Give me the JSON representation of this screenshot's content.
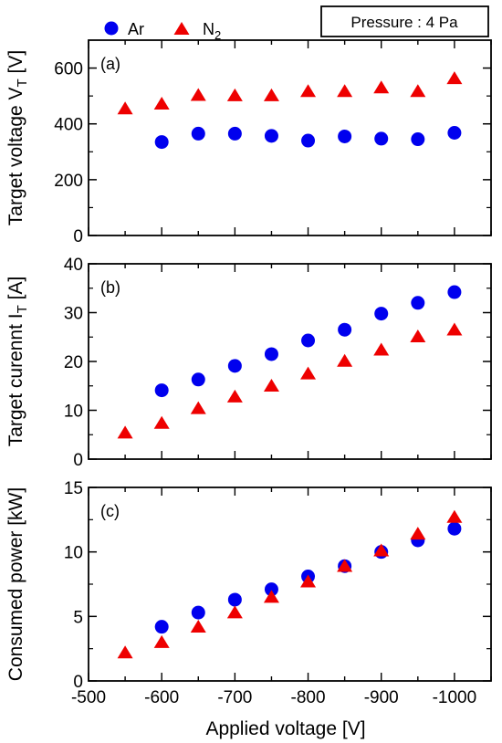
{
  "legend": {
    "ar_label": "Ar",
    "n2_label": "N",
    "n2_sub": "2",
    "ar_color": "#0000ee",
    "n2_color": "#ee0000"
  },
  "pressure_label": "Pressure : 4 Pa",
  "xlabel": "Applied voltage [V]",
  "chart_data": [
    {
      "type": "scatter",
      "panel_label": "(a)",
      "ylabel_main": "Target voltage V",
      "ylabel_sub": "T",
      "ylabel_unit": " [V]",
      "xlim": [
        -500,
        -1050
      ],
      "ylim": [
        0,
        700
      ],
      "xticks": [
        -500,
        -600,
        -700,
        -800,
        -900,
        -1000
      ],
      "yticks": [
        0,
        200,
        400,
        600
      ],
      "series": [
        {
          "name": "Ar",
          "marker": "circle",
          "color": "#0000ee",
          "x": [
            -600,
            -650,
            -700,
            -750,
            -800,
            -850,
            -900,
            -950,
            -1000
          ],
          "y": [
            335,
            365,
            365,
            357,
            340,
            355,
            347,
            345,
            368
          ]
        },
        {
          "name": "N2",
          "marker": "triangle",
          "color": "#ee0000",
          "x": [
            -550,
            -600,
            -650,
            -700,
            -750,
            -800,
            -850,
            -900,
            -950,
            -1000
          ],
          "y": [
            455,
            472,
            503,
            502,
            502,
            517,
            517,
            530,
            517,
            563
          ]
        }
      ]
    },
    {
      "type": "scatter",
      "panel_label": "(b)",
      "ylabel_main": "Target curennt I",
      "ylabel_sub": "T",
      "ylabel_unit": " [A]",
      "xlim": [
        -500,
        -1050
      ],
      "ylim": [
        0,
        40
      ],
      "xticks": [
        -500,
        -600,
        -700,
        -800,
        -900,
        -1000
      ],
      "yticks": [
        0,
        10,
        20,
        30,
        40
      ],
      "series": [
        {
          "name": "Ar",
          "marker": "circle",
          "color": "#0000ee",
          "x": [
            -600,
            -650,
            -700,
            -750,
            -800,
            -850,
            -900,
            -950,
            -1000
          ],
          "y": [
            14.1,
            16.3,
            19.1,
            21.5,
            24.3,
            26.5,
            29.8,
            32.0,
            34.2
          ]
        },
        {
          "name": "N2",
          "marker": "triangle",
          "color": "#ee0000",
          "x": [
            -550,
            -600,
            -650,
            -700,
            -750,
            -800,
            -850,
            -900,
            -950,
            -1000
          ],
          "y": [
            5.4,
            7.4,
            10.4,
            12.8,
            15.0,
            17.5,
            20.1,
            22.4,
            25.1,
            26.5
          ]
        }
      ]
    },
    {
      "type": "scatter",
      "panel_label": "(c)",
      "ylabel_main": "Consumed power [kW]",
      "ylabel_sub": "",
      "ylabel_unit": "",
      "xlim": [
        -500,
        -1050
      ],
      "ylim": [
        0,
        15
      ],
      "xticks": [
        -500,
        -600,
        -700,
        -800,
        -900,
        -1000
      ],
      "yticks": [
        0,
        5,
        10,
        15
      ],
      "series": [
        {
          "name": "Ar",
          "marker": "circle",
          "color": "#0000ee",
          "x": [
            -600,
            -650,
            -700,
            -750,
            -800,
            -850,
            -900,
            -950,
            -1000
          ],
          "y": [
            4.2,
            5.3,
            6.3,
            7.1,
            8.1,
            8.9,
            10.0,
            10.9,
            11.8
          ]
        },
        {
          "name": "N2",
          "marker": "triangle",
          "color": "#ee0000",
          "x": [
            -550,
            -600,
            -650,
            -700,
            -750,
            -800,
            -850,
            -900,
            -950,
            -1000
          ],
          "y": [
            2.2,
            3.0,
            4.2,
            5.3,
            6.5,
            7.7,
            8.9,
            10.1,
            11.4,
            12.7
          ]
        }
      ]
    }
  ]
}
